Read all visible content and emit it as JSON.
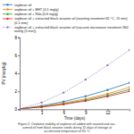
{
  "chart_data": {
    "type": "line",
    "xlabel": "Time (days)",
    "ylabel": "PV (meq/kg)",
    "annotations": [
      "Figure 2: Oxidative stability of soybean oil added with roasted and vac-\nuumed oil from black sesame seeds during 15 days of storage at\naccelerated temperature of 65 °C"
    ],
    "x": [
      0,
      3,
      6,
      9,
      12,
      15
    ],
    "series": [
      {
        "name": "soybean oil",
        "values": [
          0.05,
          0.38,
          0.85,
          1.45,
          2.15,
          2.95
        ],
        "line_style": "solid"
      },
      {
        "name": "soybean oil + BHT (0.1 mg/g)",
        "values": [
          0.05,
          0.3,
          0.68,
          1.15,
          1.72,
          2.45
        ],
        "line_style": "solid"
      },
      {
        "name": "soybean oil + Rda (0.6 mg/g)",
        "values": [
          0.05,
          0.27,
          0.6,
          1.02,
          1.55,
          2.2
        ],
        "line_style": "solid"
      },
      {
        "name": "soybean oil + extracted black sesame oil (roasting treatment 65 °C, 15 min) (0.1 mm)",
        "values": [
          0.05,
          0.24,
          0.54,
          0.92,
          1.42,
          2.0
        ],
        "line_style": "solid"
      },
      {
        "name": "soybean oil + extracted black sesame oil (vacuum microwave treatment 360 watt/g (5 min))",
        "values": [
          0.05,
          0.75,
          1.85,
          3.3,
          4.9,
          6.6
        ],
        "line_style": "dotted"
      }
    ],
    "xlim": [
      0,
      15
    ],
    "ylim": [
      0,
      8
    ],
    "xticks": [
      3,
      6,
      9,
      12
    ],
    "yticks": [
      0,
      2,
      4,
      6,
      8
    ],
    "marker": "square",
    "legend": "top left",
    "grid": false
  }
}
